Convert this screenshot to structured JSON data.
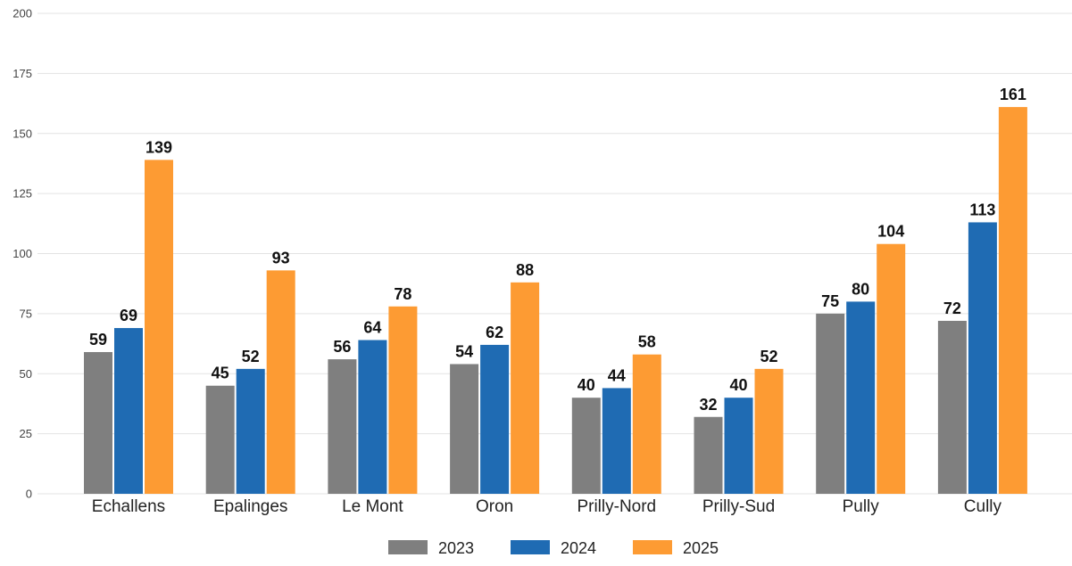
{
  "chart_data": {
    "type": "bar",
    "categories": [
      "Echallens",
      "Epalinges",
      "Le Mont",
      "Oron",
      "Prilly-Nord",
      "Prilly-Sud",
      "Pully",
      "Cully"
    ],
    "series": [
      {
        "name": "2023",
        "color": "#7f7f7f",
        "values": [
          59,
          45,
          56,
          54,
          40,
          32,
          75,
          72
        ]
      },
      {
        "name": "2024",
        "color": "#1f6bb3",
        "values": [
          69,
          52,
          64,
          62,
          44,
          40,
          80,
          113
        ]
      },
      {
        "name": "2025",
        "color": "#fd9b33",
        "values": [
          139,
          93,
          78,
          88,
          58,
          52,
          104,
          161
        ]
      }
    ],
    "title": "",
    "xlabel": "",
    "ylabel": "",
    "ylim": [
      0,
      200
    ],
    "yticks": [
      "0",
      "25",
      "50",
      "75",
      "100",
      "125",
      "150",
      "175",
      "200"
    ],
    "grid": true,
    "legend_position": "bottom-center"
  }
}
